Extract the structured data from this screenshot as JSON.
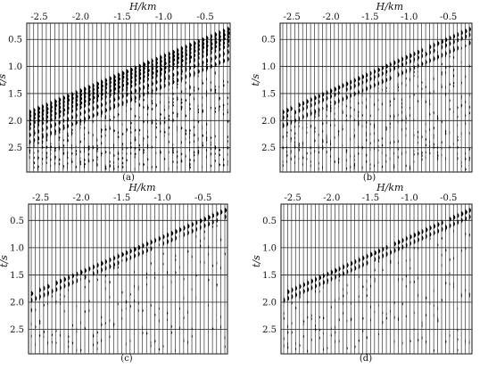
{
  "figure": {
    "panels": [
      {
        "caption": "(a)",
        "x_axis_label": "H/km",
        "y_axis_label": "t/s",
        "x_ticks": [
          "-2.5",
          "-2.0",
          "-1.5",
          "-1.0",
          "-0.5"
        ],
        "y_ticks": [
          "0.5",
          "1.0",
          "1.5",
          "2.0",
          "2.5"
        ],
        "content": "raw"
      },
      {
        "caption": "(b)",
        "x_axis_label": "H/km",
        "y_axis_label": "t/s",
        "x_ticks": [
          "-2.5",
          "-2.0",
          "-1.5",
          "-1.0",
          "-0.5"
        ],
        "y_ticks": [
          "0.5",
          "1.0",
          "1.5",
          "2.0",
          "2.5"
        ],
        "content": "partial"
      },
      {
        "caption": "(c)",
        "x_axis_label": "H/km",
        "y_axis_label": "t/s",
        "x_ticks": [
          "-2.5",
          "-2.0",
          "-1.5",
          "-1.0",
          "-0.5"
        ],
        "y_ticks": [
          "0.5",
          "1.0",
          "1.5",
          "2.0",
          "2.5"
        ],
        "content": "clean"
      },
      {
        "caption": "(d)",
        "x_axis_label": "H/km",
        "y_axis_label": "t/s",
        "x_ticks": [
          "-2.5",
          "-2.0",
          "-1.5",
          "-1.0",
          "-0.5"
        ],
        "y_ticks": [
          "0.5",
          "1.0",
          "1.5",
          "2.0",
          "2.5"
        ],
        "content": "clean"
      }
    ],
    "x_range": [
      -2.65,
      -0.2
    ],
    "y_range": [
      0.2,
      2.95
    ],
    "trace_count": 48
  }
}
